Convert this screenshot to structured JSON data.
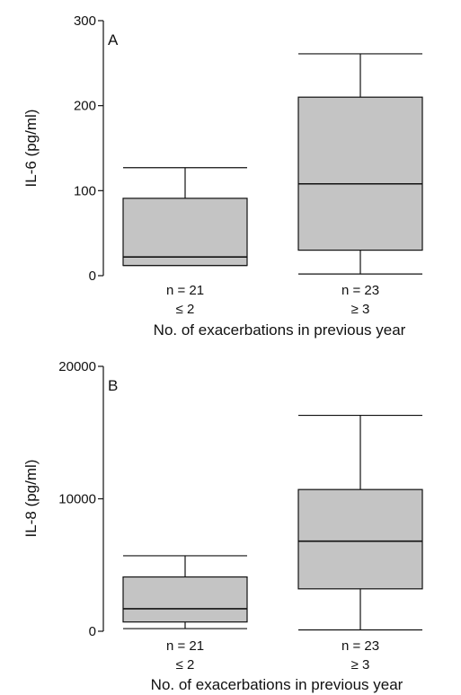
{
  "chart_data": [
    {
      "type": "boxplot",
      "panel_label": "A",
      "ylabel": "IL-6 (pg/ml)",
      "xlabel": "No. of exacerbations in previous year",
      "ylim": [
        0,
        300
      ],
      "yticks": [
        0,
        100,
        200,
        300
      ],
      "fill_color": "#c4c4c4",
      "groups": [
        {
          "n_label": "n = 21",
          "category": "≤ 2",
          "min": 12,
          "q1": 12,
          "median": 22,
          "q3": 91,
          "max": 127
        },
        {
          "n_label": "n = 23",
          "category": "≥ 3",
          "min": 2,
          "q1": 30,
          "median": 108,
          "q3": 210,
          "max": 261
        }
      ]
    },
    {
      "type": "boxplot",
      "panel_label": "B",
      "ylabel": "IL-8 (pg/ml)",
      "xlabel": "No. of exacerbations in previous year",
      "ylim": [
        0,
        20000
      ],
      "yticks": [
        0,
        10000,
        20000
      ],
      "fill_color": "#c4c4c4",
      "groups": [
        {
          "n_label": "n = 21",
          "category": "≤ 2",
          "min": 200,
          "q1": 700,
          "median": 1700,
          "q3": 4100,
          "max": 5700
        },
        {
          "n_label": "n = 23",
          "category": "≥ 3",
          "min": 100,
          "q1": 3200,
          "median": 6800,
          "q3": 10700,
          "max": 16300
        }
      ]
    }
  ]
}
